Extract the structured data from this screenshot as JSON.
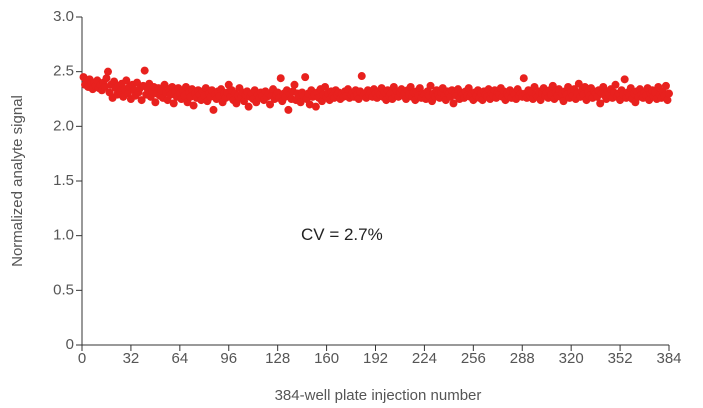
{
  "chart_data": {
    "type": "scatter",
    "x_label": "384-well plate injection number",
    "y_label": "Normalized analyte signal",
    "annotation": "CV = 2.7%",
    "annotation_pos": [
      170,
      1.0
    ],
    "xlim": [
      0,
      384
    ],
    "xticks": [
      0,
      32,
      64,
      96,
      128,
      160,
      192,
      224,
      256,
      288,
      320,
      352,
      384
    ],
    "ylim": [
      0,
      3
    ],
    "yticks": [
      0,
      0.5,
      {
        "value": 1,
        "label": "1.0"
      },
      1.5,
      {
        "value": 2,
        "label": "2.0"
      },
      2.5,
      {
        "value": 3,
        "label": "3.0"
      }
    ],
    "grid": false,
    "series": [
      {
        "color": "#e8211e",
        "x": [
          1,
          2,
          3,
          4,
          5,
          6,
          7,
          8,
          9,
          10,
          11,
          12,
          13,
          14,
          15,
          16,
          17,
          18,
          19,
          20,
          21,
          22,
          23,
          24,
          25,
          26,
          27,
          28,
          29,
          30,
          31,
          32,
          33,
          34,
          35,
          36,
          37,
          38,
          39,
          40,
          41,
          42,
          43,
          44,
          45,
          46,
          47,
          48,
          49,
          50,
          51,
          52,
          53,
          54,
          55,
          56,
          57,
          58,
          59,
          60,
          61,
          62,
          63,
          64,
          65,
          66,
          67,
          68,
          69,
          70,
          71,
          72,
          73,
          74,
          75,
          76,
          77,
          78,
          79,
          80,
          81,
          82,
          83,
          84,
          85,
          86,
          87,
          88,
          89,
          90,
          91,
          92,
          93,
          94,
          95,
          96,
          97,
          98,
          99,
          100,
          101,
          102,
          103,
          104,
          105,
          106,
          107,
          108,
          109,
          110,
          111,
          112,
          113,
          114,
          115,
          116,
          117,
          118,
          119,
          120,
          121,
          122,
          123,
          124,
          125,
          126,
          127,
          128,
          129,
          130,
          131,
          132,
          133,
          134,
          135,
          136,
          137,
          138,
          139,
          140,
          141,
          142,
          143,
          144,
          145,
          146,
          147,
          148,
          149,
          150,
          151,
          152,
          153,
          154,
          155,
          156,
          157,
          158,
          159,
          160,
          161,
          162,
          163,
          164,
          165,
          166,
          167,
          168,
          169,
          170,
          171,
          172,
          173,
          174,
          175,
          176,
          177,
          178,
          179,
          180,
          181,
          182,
          183,
          184,
          185,
          186,
          187,
          188,
          189,
          190,
          191,
          192,
          193,
          194,
          195,
          196,
          197,
          198,
          199,
          200,
          201,
          202,
          203,
          204,
          205,
          206,
          207,
          208,
          209,
          210,
          211,
          212,
          213,
          214,
          215,
          216,
          217,
          218,
          219,
          220,
          221,
          222,
          223,
          224,
          225,
          226,
          227,
          228,
          229,
          230,
          231,
          232,
          233,
          234,
          235,
          236,
          237,
          238,
          239,
          240,
          241,
          242,
          243,
          244,
          245,
          246,
          247,
          248,
          249,
          250,
          251,
          252,
          253,
          254,
          255,
          256,
          257,
          258,
          259,
          260,
          261,
          262,
          263,
          264,
          265,
          266,
          267,
          268,
          269,
          270,
          271,
          272,
          273,
          274,
          275,
          276,
          277,
          278,
          279,
          280,
          281,
          282,
          283,
          284,
          285,
          286,
          287,
          288,
          289,
          290,
          291,
          292,
          293,
          294,
          295,
          296,
          297,
          298,
          299,
          300,
          301,
          302,
          303,
          304,
          305,
          306,
          307,
          308,
          309,
          310,
          311,
          312,
          313,
          314,
          315,
          316,
          317,
          318,
          319,
          320,
          321,
          322,
          323,
          324,
          325,
          326,
          327,
          328,
          329,
          330,
          331,
          332,
          333,
          334,
          335,
          336,
          337,
          338,
          339,
          340,
          341,
          342,
          343,
          344,
          345,
          346,
          347,
          348,
          349,
          350,
          351,
          352,
          353,
          354,
          355,
          356,
          357,
          358,
          359,
          360,
          361,
          362,
          363,
          364,
          365,
          366,
          367,
          368,
          369,
          370,
          371,
          372,
          373,
          374,
          375,
          376,
          377,
          378,
          379,
          380,
          381,
          382,
          383,
          384
        ],
        "values": [
          2.45,
          2.38,
          2.41,
          2.36,
          2.43,
          2.39,
          2.34,
          2.4,
          2.37,
          2.42,
          2.35,
          2.38,
          2.33,
          2.4,
          2.36,
          2.44,
          2.5,
          2.31,
          2.38,
          2.26,
          2.41,
          2.35,
          2.29,
          2.37,
          2.32,
          2.39,
          2.27,
          2.34,
          2.42,
          2.3,
          2.36,
          2.25,
          2.38,
          2.33,
          2.28,
          2.4,
          2.31,
          2.35,
          2.24,
          2.37,
          2.51,
          2.29,
          2.34,
          2.39,
          2.27,
          2.32,
          2.36,
          2.22,
          2.3,
          2.35,
          2.28,
          2.33,
          2.26,
          2.38,
          2.31,
          2.24,
          2.34,
          2.29,
          2.36,
          2.21,
          2.32,
          2.27,
          2.35,
          2.3,
          2.25,
          2.33,
          2.28,
          2.36,
          2.22,
          2.31,
          2.27,
          2.34,
          2.19,
          2.3,
          2.26,
          2.33,
          2.29,
          2.24,
          2.32,
          2.28,
          2.35,
          2.23,
          2.3,
          2.27,
          2.33,
          2.15,
          2.29,
          2.25,
          2.32,
          2.28,
          2.34,
          2.22,
          2.3,
          2.26,
          2.31,
          2.38,
          2.27,
          2.33,
          2.24,
          2.3,
          2.21,
          2.28,
          2.35,
          2.26,
          2.31,
          2.23,
          2.29,
          2.32,
          2.18,
          2.27,
          2.3,
          2.25,
          2.33,
          2.22,
          2.29,
          2.26,
          2.31,
          2.28,
          2.24,
          2.32,
          2.27,
          2.3,
          2.2,
          2.28,
          2.34,
          2.25,
          2.29,
          2.31,
          2.26,
          2.44,
          2.23,
          2.3,
          2.27,
          2.33,
          2.15,
          2.29,
          2.25,
          2.32,
          2.38,
          2.24,
          2.3,
          2.27,
          2.22,
          2.31,
          2.28,
          2.45,
          2.25,
          2.3,
          2.2,
          2.33,
          2.27,
          2.29,
          2.18,
          2.31,
          2.26,
          2.34,
          2.23,
          2.29,
          2.36,
          2.27,
          2.3,
          2.24,
          2.32,
          2.28,
          2.26,
          2.33,
          2.29,
          2.31,
          2.25,
          2.3,
          2.27,
          2.32,
          2.28,
          2.34,
          2.26,
          2.29,
          2.31,
          2.27,
          2.33,
          2.29,
          2.25,
          2.32,
          2.46,
          2.28,
          2.3,
          2.26,
          2.33,
          2.29,
          2.31,
          2.27,
          2.34,
          2.3,
          2.26,
          2.32,
          2.29,
          2.35,
          2.27,
          2.31,
          2.24,
          2.33,
          2.28,
          2.3,
          2.25,
          2.36,
          2.29,
          2.32,
          2.27,
          2.31,
          2.34,
          2.28,
          2.3,
          2.25,
          2.33,
          2.29,
          2.36,
          2.27,
          2.31,
          2.24,
          2.32,
          2.28,
          2.35,
          2.26,
          2.3,
          2.29,
          2.25,
          2.32,
          2.28,
          2.37,
          2.23,
          2.3,
          2.27,
          2.33,
          2.29,
          2.26,
          2.31,
          2.35,
          2.28,
          2.24,
          2.32,
          2.3,
          2.27,
          2.33,
          2.21,
          2.3,
          2.28,
          2.34,
          2.25,
          2.31,
          2.29,
          2.26,
          2.32,
          2.28,
          2.35,
          2.27,
          2.3,
          2.24,
          2.31,
          2.28,
          2.33,
          2.26,
          2.3,
          2.24,
          2.32,
          2.29,
          2.27,
          2.34,
          2.25,
          2.3,
          2.28,
          2.33,
          2.26,
          2.31,
          2.29,
          2.35,
          2.27,
          2.32,
          2.24,
          2.3,
          2.28,
          2.33,
          2.26,
          2.31,
          2.29,
          2.25,
          2.34,
          2.28,
          2.3,
          2.27,
          2.44,
          2.3,
          2.26,
          2.33,
          2.28,
          2.31,
          2.25,
          2.36,
          2.29,
          2.27,
          2.32,
          2.24,
          2.3,
          2.35,
          2.28,
          2.31,
          2.26,
          2.33,
          2.29,
          2.37,
          2.25,
          2.31,
          2.28,
          2.34,
          2.27,
          2.3,
          2.23,
          2.32,
          2.29,
          2.36,
          2.26,
          2.31,
          2.28,
          2.34,
          2.25,
          2.3,
          2.39,
          2.27,
          2.33,
          2.29,
          2.36,
          2.24,
          2.31,
          2.28,
          2.35,
          2.26,
          2.32,
          2.3,
          2.27,
          2.33,
          2.21,
          2.3,
          2.36,
          2.28,
          2.25,
          2.32,
          2.29,
          2.34,
          2.26,
          2.31,
          2.38,
          2.27,
          2.3,
          2.24,
          2.33,
          2.29,
          2.43,
          2.26,
          2.31,
          2.28,
          2.35,
          2.25,
          2.3,
          2.22,
          2.32,
          2.27,
          2.34,
          2.29,
          2.26,
          2.31,
          2.28,
          2.35,
          2.24,
          2.3,
          2.33,
          2.27,
          2.31,
          2.25,
          2.36,
          2.29,
          2.26,
          2.32,
          2.28,
          2.37,
          2.24,
          2.3
        ]
      }
    ]
  }
}
